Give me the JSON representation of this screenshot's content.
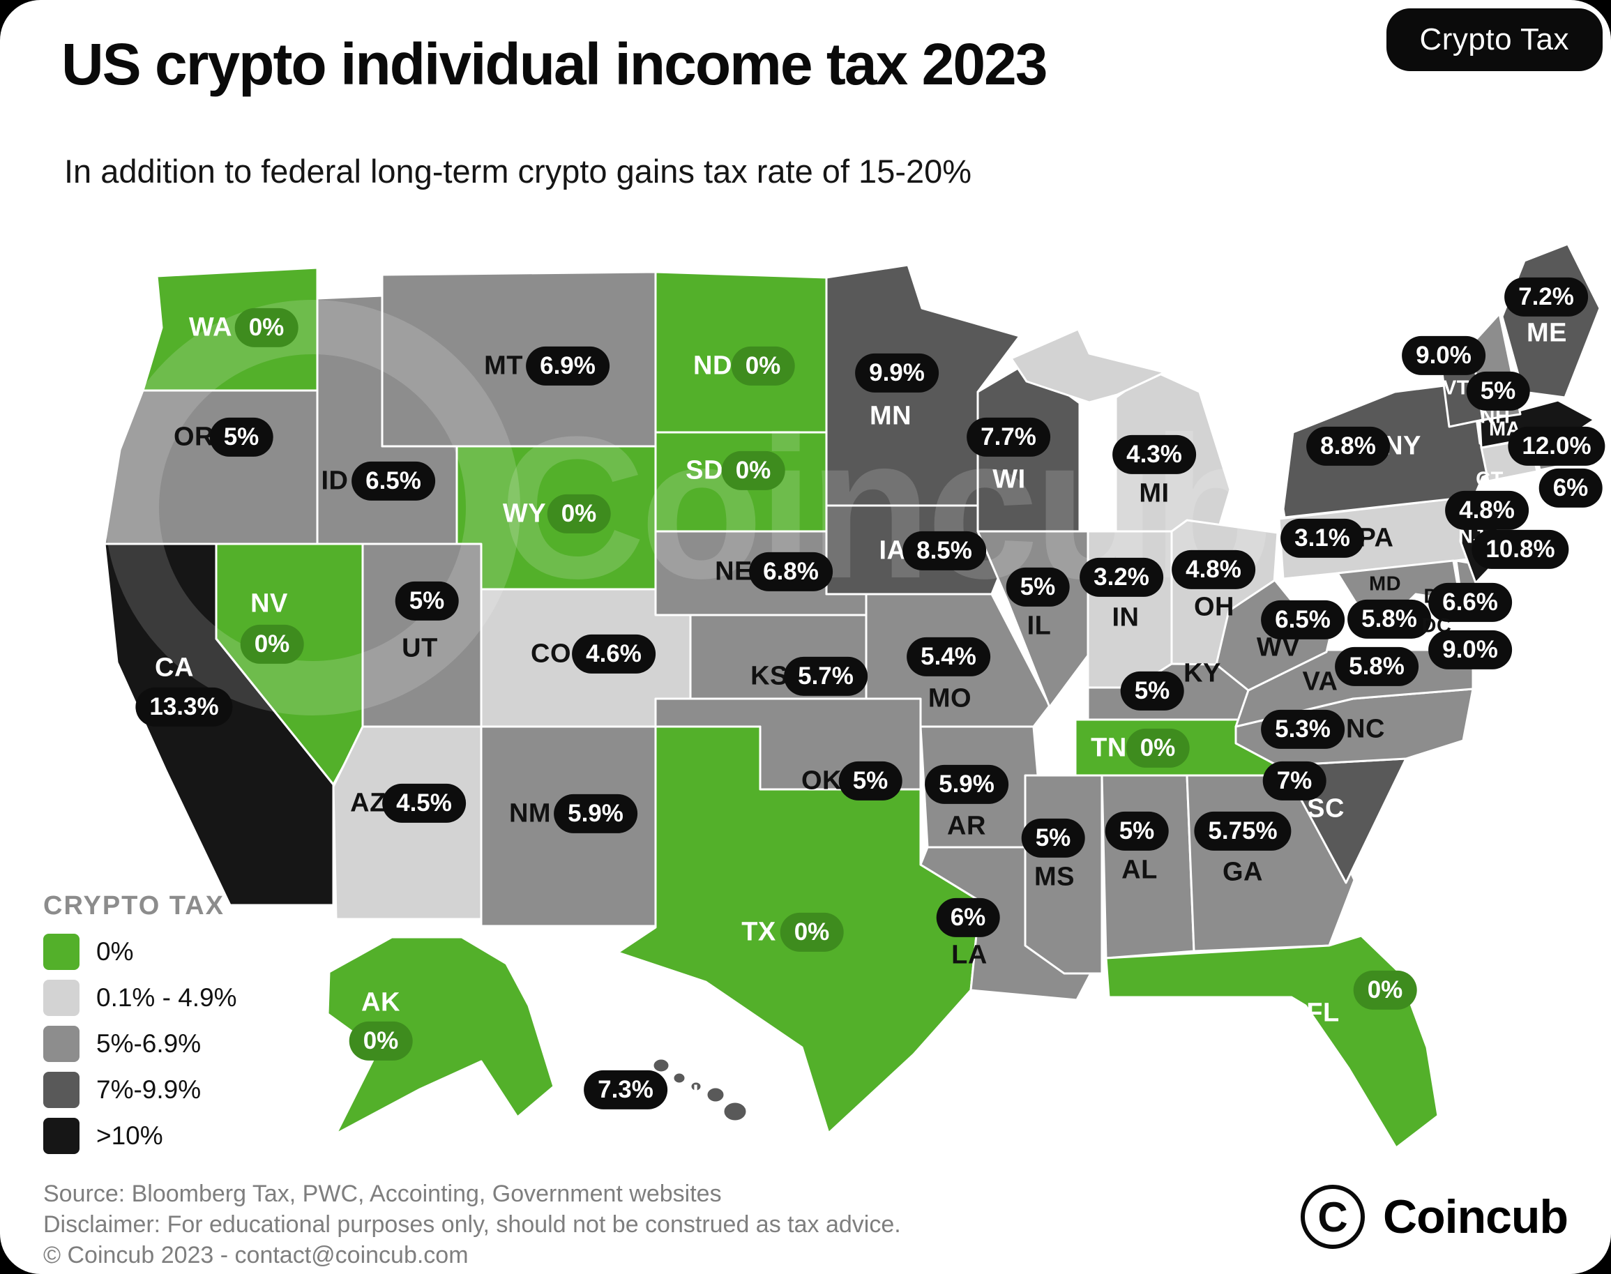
{
  "header": {
    "badge": "Crypto Tax",
    "title": "US crypto individual income tax 2023",
    "subtitle": "In addition to federal long-term crypto gains tax rate of 15-20%",
    "watermark": "Coincub"
  },
  "colors": {
    "zero": "#53b02a",
    "light": "#d3d3d3",
    "mid": "#8d8d8d",
    "dark": "#595959",
    "black": "#161616",
    "badge_black": "#0d0d0d",
    "badge_green": "#3e8c1e",
    "page_bg": "#000000",
    "card_bg": "#ffffff"
  },
  "chart_data": {
    "type": "choropleth",
    "title": "US crypto individual income tax 2023",
    "subtitle": "In addition to federal long-term crypto gains tax rate of 15-20%",
    "legend_title": "CRYPTO TAX",
    "categories": [
      {
        "key": "zero",
        "label": "0%",
        "color": "#53b02a"
      },
      {
        "key": "light",
        "label": "0.1% - 4.9%",
        "color": "#d3d3d3"
      },
      {
        "key": "mid",
        "label": "5%-6.9%",
        "color": "#8d8d8d"
      },
      {
        "key": "dark",
        "label": "7%-9.9%",
        "color": "#595959"
      },
      {
        "key": "black",
        "label": ">10%",
        "color": "#161616"
      }
    ],
    "states": [
      {
        "abbr": "WA",
        "rate": "0%",
        "category": "zero"
      },
      {
        "abbr": "OR",
        "rate": "5%",
        "category": "mid"
      },
      {
        "abbr": "CA",
        "rate": "13.3%",
        "category": "black"
      },
      {
        "abbr": "NV",
        "rate": "0%",
        "category": "zero"
      },
      {
        "abbr": "ID",
        "rate": "6.5%",
        "category": "mid"
      },
      {
        "abbr": "MT",
        "rate": "6.9%",
        "category": "mid"
      },
      {
        "abbr": "WY",
        "rate": "0%",
        "category": "zero"
      },
      {
        "abbr": "UT",
        "rate": "5%",
        "category": "mid"
      },
      {
        "abbr": "CO",
        "rate": "4.6%",
        "category": "light"
      },
      {
        "abbr": "AZ",
        "rate": "4.5%",
        "category": "light"
      },
      {
        "abbr": "NM",
        "rate": "5.9%",
        "category": "mid"
      },
      {
        "abbr": "ND",
        "rate": "0%",
        "category": "zero"
      },
      {
        "abbr": "SD",
        "rate": "0%",
        "category": "zero"
      },
      {
        "abbr": "NE",
        "rate": "6.8%",
        "category": "mid"
      },
      {
        "abbr": "KS",
        "rate": "5.7%",
        "category": "mid"
      },
      {
        "abbr": "OK",
        "rate": "5%",
        "category": "mid"
      },
      {
        "abbr": "TX",
        "rate": "0%",
        "category": "zero"
      },
      {
        "abbr": "MN",
        "rate": "9.9%",
        "category": "dark"
      },
      {
        "abbr": "IA",
        "rate": "8.5%",
        "category": "dark"
      },
      {
        "abbr": "MO",
        "rate": "5.4%",
        "category": "mid"
      },
      {
        "abbr": "AR",
        "rate": "5.9%",
        "category": "mid"
      },
      {
        "abbr": "LA",
        "rate": "6%",
        "category": "mid"
      },
      {
        "abbr": "WI",
        "rate": "7.7%",
        "category": "dark"
      },
      {
        "abbr": "IL",
        "rate": "5%",
        "category": "mid"
      },
      {
        "abbr": "IN",
        "rate": "3.2%",
        "category": "light"
      },
      {
        "abbr": "MI",
        "rate": "4.3%",
        "category": "light"
      },
      {
        "abbr": "OH",
        "rate": "4.8%",
        "category": "light"
      },
      {
        "abbr": "KY",
        "rate": "5%",
        "category": "mid"
      },
      {
        "abbr": "TN",
        "rate": "0%",
        "category": "zero"
      },
      {
        "abbr": "MS",
        "rate": "5%",
        "category": "mid"
      },
      {
        "abbr": "AL",
        "rate": "5%",
        "category": "mid"
      },
      {
        "abbr": "GA",
        "rate": "5.75%",
        "category": "mid"
      },
      {
        "abbr": "FL",
        "rate": "0%",
        "category": "zero"
      },
      {
        "abbr": "SC",
        "rate": "7%",
        "category": "dark"
      },
      {
        "abbr": "NC",
        "rate": "5.3%",
        "category": "mid"
      },
      {
        "abbr": "VA",
        "rate": "5.8%",
        "category": "mid"
      },
      {
        "abbr": "WV",
        "rate": "6.5%",
        "category": "mid"
      },
      {
        "abbr": "MD",
        "rate": "5.8%",
        "category": "mid"
      },
      {
        "abbr": "DE",
        "rate": "6.6%",
        "category": "mid"
      },
      {
        "abbr": "DC",
        "rate": "9.0%",
        "category": "dark"
      },
      {
        "abbr": "PA",
        "rate": "3.1%",
        "category": "light"
      },
      {
        "abbr": "NY",
        "rate": "8.8%",
        "category": "dark"
      },
      {
        "abbr": "NJ",
        "rate": "10.8%",
        "category": "black"
      },
      {
        "abbr": "CT",
        "rate": "4.8%",
        "category": "light"
      },
      {
        "abbr": "RI",
        "rate": "6%",
        "category": "mid"
      },
      {
        "abbr": "MA",
        "rate": "12.0%",
        "category": "black"
      },
      {
        "abbr": "VT",
        "rate": "9.0%",
        "category": "dark"
      },
      {
        "abbr": "NH",
        "rate": "5%",
        "category": "mid"
      },
      {
        "abbr": "ME",
        "rate": "7.2%",
        "category": "dark"
      },
      {
        "abbr": "AK",
        "rate": "0%",
        "category": "zero"
      },
      {
        "abbr": "HI",
        "rate": "7.3%",
        "category": "dark"
      }
    ]
  },
  "footer": {
    "source": "Source: Bloomberg Tax, PWC, Accointing, Government websites",
    "disclaimer": "Disclaimer: For educational purposes only, should not be construed as tax advice.",
    "copyright": "© Coincub 2023 - contact@coincub.com",
    "logo_initial": "C",
    "logo_text": "Coincub"
  }
}
